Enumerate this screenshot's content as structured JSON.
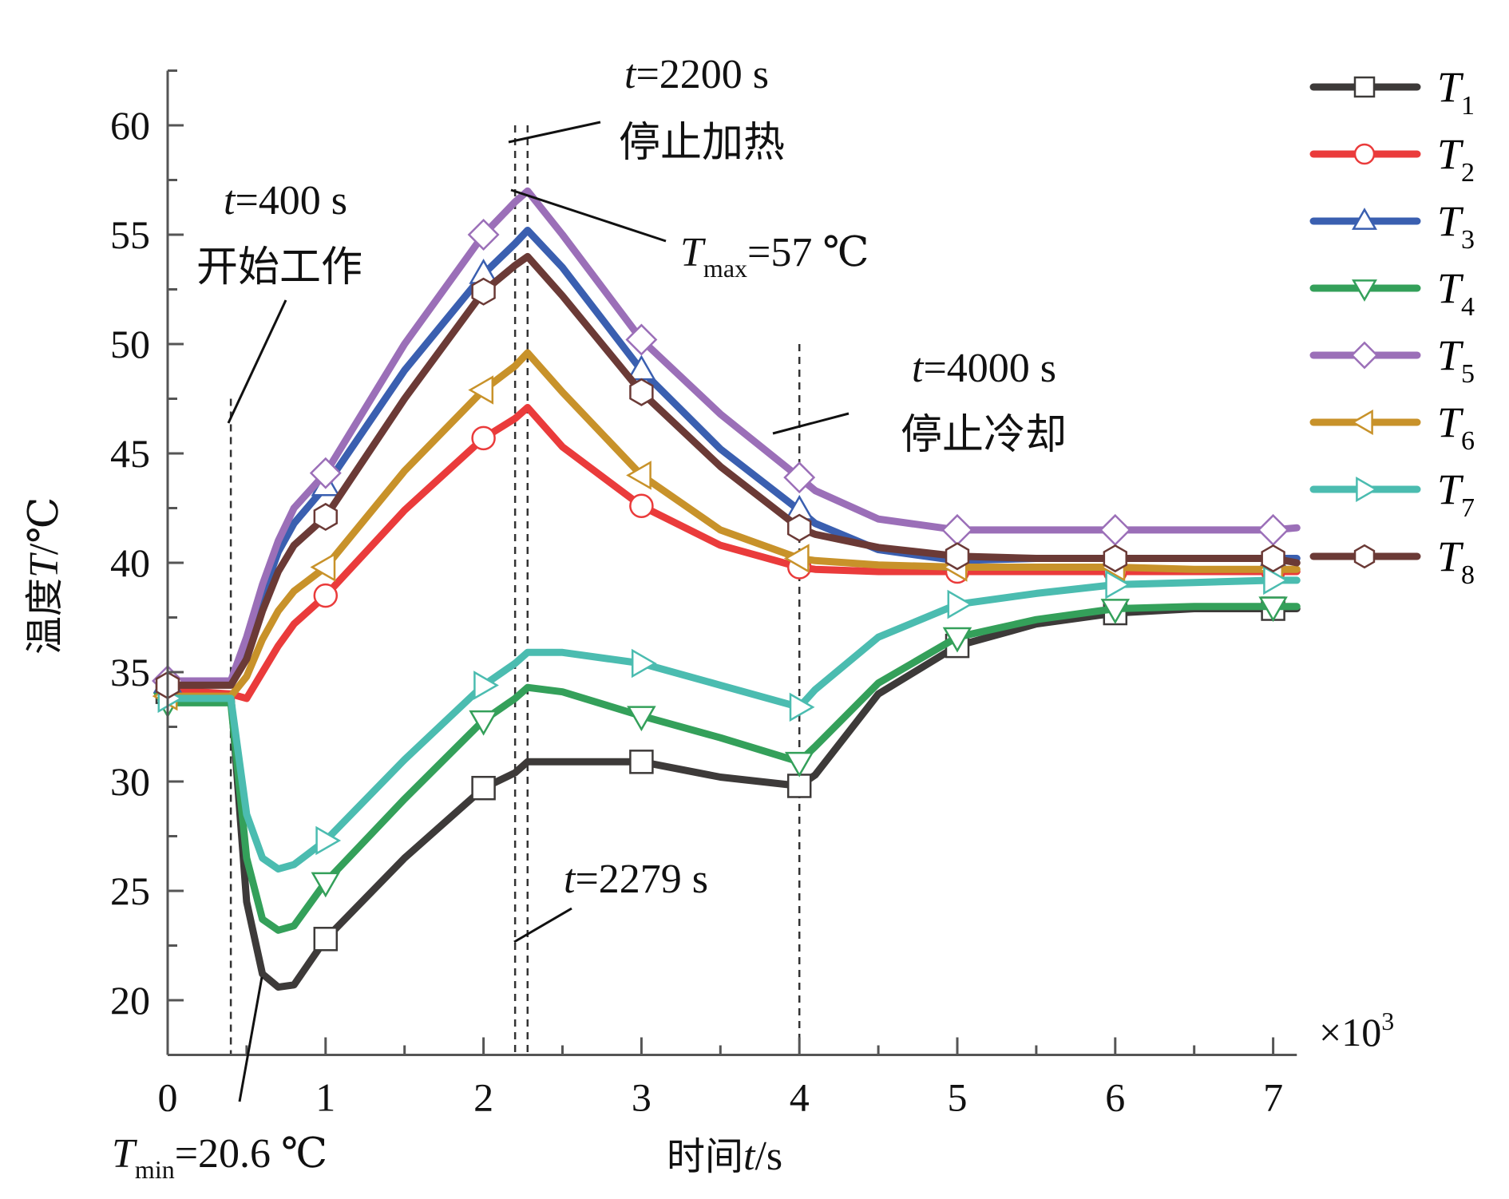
{
  "chart_data": {
    "type": "line",
    "title": "",
    "xlabel": "时间t/s",
    "xlabel_parts": {
      "cjk": "时间",
      "var": "t",
      "unit": "/s"
    },
    "ylabel": "温度T/℃",
    "ylabel_parts": {
      "cjk": "温度",
      "var": "T",
      "unit": "/℃"
    },
    "x_multiplier": "×10",
    "x_multiplier_exp": "3",
    "xlim": [
      0,
      7.15
    ],
    "ylim": [
      17.5,
      62.5
    ],
    "x_ticks": [
      0,
      1,
      2,
      3,
      4,
      5,
      6,
      7
    ],
    "x_tick_labels": [
      "0",
      "1",
      "2",
      "3",
      "4",
      "5",
      "6",
      "7"
    ],
    "y_ticks": [
      20,
      25,
      30,
      35,
      40,
      45,
      50,
      55,
      60
    ],
    "y_tick_labels": [
      "20",
      "25",
      "30",
      "35",
      "40",
      "45",
      "50",
      "55",
      "60"
    ],
    "grid": false,
    "legend_position": "right",
    "x": [
      0,
      0.2,
      0.4,
      0.5,
      0.6,
      0.7,
      0.8,
      1.0,
      1.5,
      2.0,
      2.2,
      2.279,
      2.5,
      3.0,
      3.5,
      4.0,
      4.1,
      4.5,
      5.0,
      5.5,
      6.0,
      6.5,
      7.0,
      7.15
    ],
    "series": [
      {
        "name": "T1",
        "sub": "1",
        "color": "#3d3a39",
        "marker": "square",
        "marker_x": [
          0,
          1,
          2,
          3,
          4,
          5,
          6,
          7
        ],
        "values": [
          34.1,
          34.0,
          34.0,
          24.5,
          21.2,
          20.6,
          20.7,
          22.8,
          26.5,
          29.7,
          30.4,
          30.9,
          30.9,
          30.9,
          30.2,
          29.8,
          30.3,
          34.0,
          36.2,
          37.2,
          37.7,
          37.9,
          37.9,
          37.9
        ]
      },
      {
        "name": "T2",
        "sub": "2",
        "color": "#ea3b3b",
        "marker": "circle",
        "marker_x": [
          0,
          1,
          2,
          3,
          4,
          5,
          6,
          7
        ],
        "values": [
          34.1,
          34.1,
          34.0,
          33.8,
          35.0,
          36.2,
          37.2,
          38.5,
          42.4,
          45.7,
          46.6,
          47.1,
          45.3,
          42.6,
          40.8,
          39.8,
          39.7,
          39.6,
          39.6,
          39.6,
          39.6,
          39.6,
          39.6,
          39.6
        ]
      },
      {
        "name": "T3",
        "sub": "3",
        "color": "#3a5fb0",
        "marker": "triangle-up",
        "marker_x": [
          0,
          1,
          2,
          3,
          4,
          5,
          6,
          7
        ],
        "values": [
          34.5,
          34.5,
          34.5,
          36.0,
          38.5,
          40.5,
          41.8,
          43.5,
          48.8,
          53.2,
          54.6,
          55.2,
          53.5,
          48.8,
          45.2,
          42.4,
          41.8,
          40.6,
          40.1,
          40.2,
          40.2,
          40.2,
          40.2,
          40.2
        ]
      },
      {
        "name": "T4",
        "sub": "4",
        "color": "#34a05a",
        "marker": "triangle-down",
        "marker_x": [
          0,
          1,
          2,
          3,
          4,
          5,
          6,
          7
        ],
        "values": [
          33.6,
          33.6,
          33.6,
          26.5,
          23.7,
          23.2,
          23.4,
          25.4,
          29.2,
          32.8,
          33.8,
          34.3,
          34.1,
          33.0,
          32.0,
          30.9,
          31.6,
          34.5,
          36.6,
          37.4,
          37.9,
          38.0,
          38.0,
          38.0
        ]
      },
      {
        "name": "T5",
        "sub": "5",
        "color": "#9b6fb8",
        "marker": "diamond",
        "marker_x": [
          0,
          1,
          2,
          3,
          4,
          5,
          6,
          7
        ],
        "values": [
          34.6,
          34.6,
          34.6,
          36.6,
          39.0,
          41.0,
          42.5,
          44.1,
          50.0,
          55.0,
          56.5,
          57.0,
          55.0,
          50.2,
          46.8,
          43.9,
          43.3,
          42.0,
          41.5,
          41.5,
          41.5,
          41.5,
          41.5,
          41.6
        ]
      },
      {
        "name": "T6",
        "sub": "6",
        "color": "#c8922a",
        "marker": "triangle-left",
        "marker_x": [
          0,
          1,
          2,
          3,
          4,
          5,
          6,
          7
        ],
        "values": [
          33.9,
          33.9,
          33.9,
          34.8,
          36.5,
          37.8,
          38.7,
          39.8,
          44.2,
          47.9,
          49.0,
          49.6,
          47.8,
          44.0,
          41.5,
          40.2,
          40.1,
          39.9,
          39.8,
          39.8,
          39.8,
          39.7,
          39.7,
          39.7
        ]
      },
      {
        "name": "T7",
        "sub": "7",
        "color": "#4bbcb0",
        "marker": "triangle-right",
        "marker_x": [
          0,
          1,
          2,
          3,
          4,
          5,
          6,
          7
        ],
        "values": [
          33.8,
          33.8,
          33.8,
          28.5,
          26.5,
          26.0,
          26.2,
          27.3,
          31.0,
          34.4,
          35.4,
          35.9,
          35.9,
          35.4,
          34.4,
          33.4,
          34.2,
          36.6,
          38.1,
          38.6,
          39.0,
          39.1,
          39.2,
          39.2
        ]
      },
      {
        "name": "T8",
        "sub": "8",
        "color": "#6b3a36",
        "marker": "hexagon",
        "marker_x": [
          0,
          1,
          2,
          3,
          4,
          5,
          6,
          7
        ],
        "values": [
          34.4,
          34.4,
          34.4,
          35.6,
          37.8,
          39.6,
          40.8,
          42.1,
          47.5,
          52.4,
          53.6,
          54.0,
          52.2,
          47.8,
          44.4,
          41.6,
          41.3,
          40.7,
          40.3,
          40.2,
          40.2,
          40.2,
          40.2,
          40.0
        ]
      }
    ],
    "vlines": [
      {
        "x": 0.4,
        "name": "start-work"
      },
      {
        "x": 2.2,
        "name": "stop-heating"
      },
      {
        "x": 2.279,
        "name": "peak-time"
      },
      {
        "x": 4.0,
        "name": "stop-cooling"
      }
    ],
    "annotations": {
      "start": {
        "var": "t",
        "text": "=400 s",
        "cjk": "开始工作"
      },
      "stop_heat": {
        "var": "t",
        "text": "=2200 s",
        "cjk": "停止加热"
      },
      "tmax": {
        "var": "T",
        "sub": "max",
        "text": "=57 ℃"
      },
      "stop_cool": {
        "var": "t",
        "text": "=4000 s",
        "cjk": "停止冷却"
      },
      "peak_time": {
        "var": "t",
        "text": "=2279 s"
      },
      "tmin": {
        "var": "T",
        "sub": "min",
        "text": "=20.6 ℃"
      }
    }
  }
}
